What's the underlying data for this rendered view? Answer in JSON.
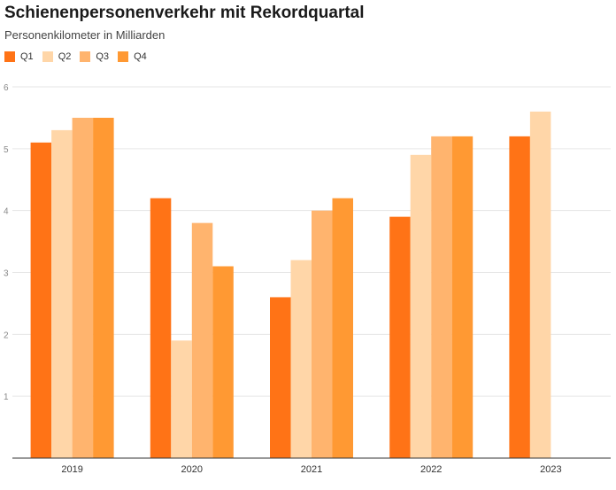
{
  "chart_data": {
    "type": "bar",
    "title": "Schienenpersonenverkehr mit Rekordquartal",
    "subtitle": "Personenkilometer in Milliarden",
    "categories": [
      "2019",
      "2020",
      "2021",
      "2022",
      "2023"
    ],
    "series": [
      {
        "name": "Q1",
        "color": "#ff7316",
        "values": [
          5.1,
          4.2,
          2.6,
          3.9,
          5.2
        ]
      },
      {
        "name": "Q2",
        "color": "#ffd6a8",
        "values": [
          5.3,
          1.9,
          3.2,
          4.9,
          5.6
        ]
      },
      {
        "name": "Q3",
        "color": "#ffb46e",
        "values": [
          5.5,
          3.8,
          4.0,
          5.2,
          null
        ]
      },
      {
        "name": "Q4",
        "color": "#ff9933",
        "values": [
          5.5,
          3.1,
          4.2,
          5.2,
          null
        ]
      }
    ],
    "ylim": [
      0,
      6
    ],
    "yticks": [
      "1",
      "2",
      "3",
      "4",
      "5",
      "6"
    ],
    "grid": true,
    "legend_position": "top-left"
  }
}
